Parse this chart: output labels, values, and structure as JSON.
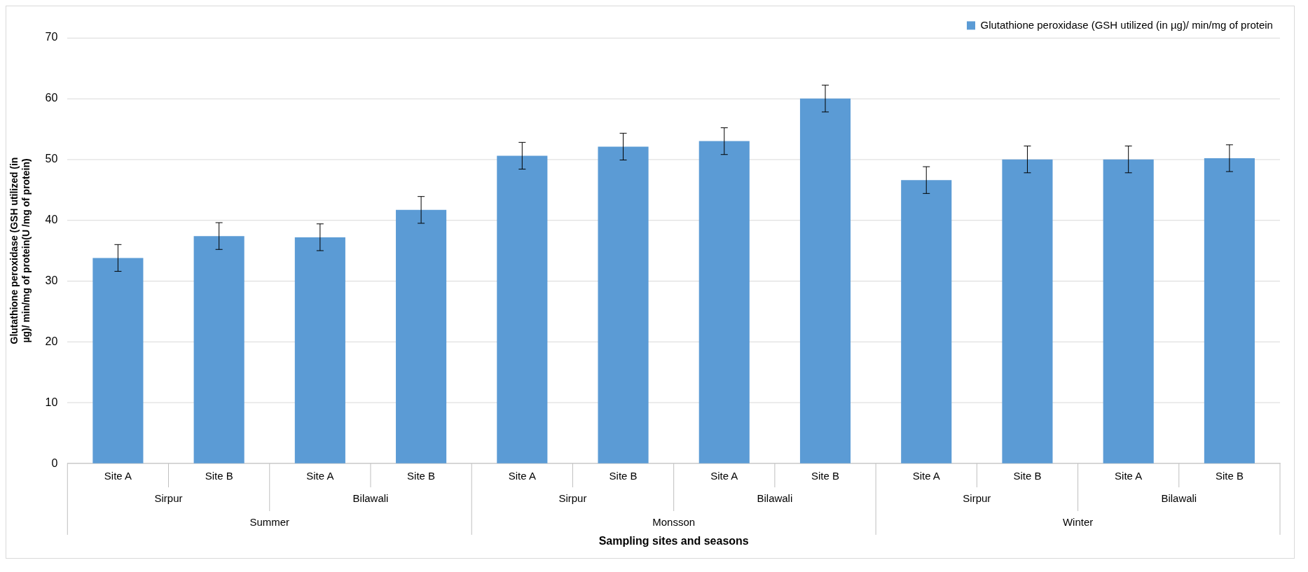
{
  "chart_data": {
    "type": "bar",
    "xlabel": "Sampling sites and seasons",
    "ylabel": "Glutathione peroxidase (GSH utilized (in µg)/ min/mg of protein(U /mg of protein)",
    "categories": [
      "Site A",
      "Site B",
      "Site A",
      "Site B",
      "Site A",
      "Site B",
      "Site A",
      "Site B",
      "Site A",
      "Site B",
      "Site A",
      "Site B"
    ],
    "series": [
      {
        "name": "Glutathione peroxidase (GSH utilized (in µg)/ min/mg of protein",
        "color": "#5b9bd5",
        "values": [
          33.8,
          37.4,
          37.2,
          41.7,
          50.6,
          52.1,
          53.0,
          60.0,
          46.6,
          50.0,
          50.0,
          50.2
        ],
        "errors": [
          2.2,
          2.2,
          2.2,
          2.2,
          2.2,
          2.2,
          2.2,
          2.2,
          2.2,
          2.2,
          2.2,
          2.2
        ]
      }
    ],
    "annotations": [
      "Sirpur",
      "Bilawali",
      "Sirpur",
      "Bilawali",
      "Sirpur",
      "Bilawali",
      "Summer",
      "Monsson",
      "Winter"
    ],
    "ylim": [
      0,
      70
    ],
    "yticks": [
      0,
      10,
      20,
      30,
      40,
      50,
      60,
      70
    ],
    "grid": "y",
    "legend": "top right"
  }
}
